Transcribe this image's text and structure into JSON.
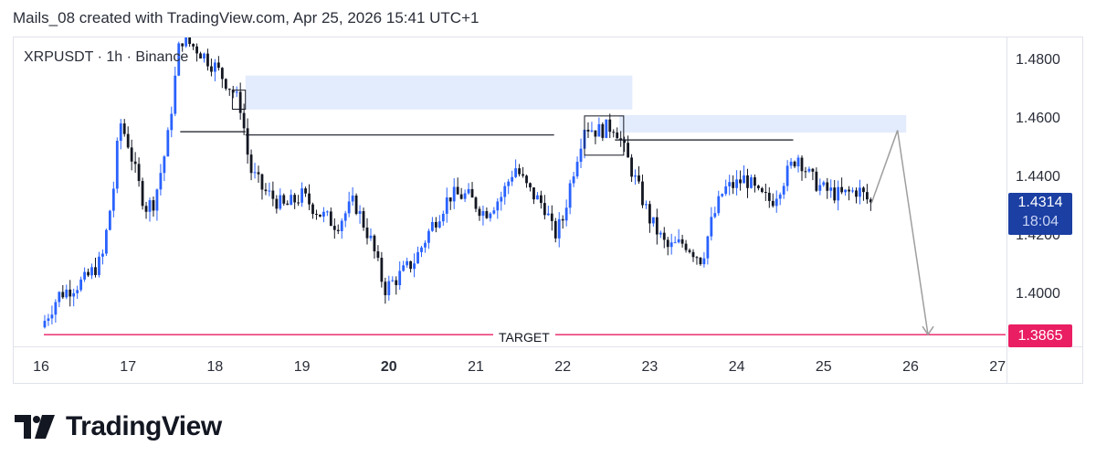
{
  "header": {
    "text": "Mails_08 created with TradingView.com, Apr 25, 2026 15:41 UTC+1"
  },
  "symbol": {
    "text": "XRPUSDT · 1h · Binance"
  },
  "price_axis": {
    "ticks": [
      "1.4800",
      "1.4600",
      "1.4400",
      "1.4200",
      "1.4000"
    ]
  },
  "time_axis": {
    "ticks": [
      "16",
      "17",
      "18",
      "19",
      "20",
      "21",
      "22",
      "23",
      "24",
      "25",
      "26",
      "27"
    ]
  },
  "current_price": {
    "price": "1.4314",
    "countdown": "18:04",
    "color": "#1b3fa3"
  },
  "target": {
    "label": "TARGET",
    "price": "1.3865",
    "color": "#e91e63"
  },
  "brand": {
    "name": "TradingView"
  },
  "colors": {
    "bull": "#2962ff",
    "bear": "#131722",
    "zone": "#e3ecfd",
    "arrow": "#9e9e9e"
  },
  "chart_data": {
    "type": "candlestick",
    "symbol": "XRPUSDT",
    "interval": "1h",
    "exchange": "Binance",
    "x_axis_days": [
      16,
      17,
      18,
      19,
      20,
      21,
      22,
      23,
      24,
      25,
      26,
      27
    ],
    "ylim": [
      1.3825,
      1.488
    ],
    "close_path": [
      {
        "day": 16.0,
        "price": 1.389
      },
      {
        "day": 16.2,
        "price": 1.4
      },
      {
        "day": 16.5,
        "price": 1.405
      },
      {
        "day": 16.7,
        "price": 1.412
      },
      {
        "day": 16.85,
        "price": 1.44
      },
      {
        "day": 16.9,
        "price": 1.46
      },
      {
        "day": 17.0,
        "price": 1.452
      },
      {
        "day": 17.1,
        "price": 1.44
      },
      {
        "day": 17.2,
        "price": 1.43
      },
      {
        "day": 17.3,
        "price": 1.432
      },
      {
        "day": 17.45,
        "price": 1.452
      },
      {
        "day": 17.6,
        "price": 1.488
      },
      {
        "day": 17.8,
        "price": 1.484
      },
      {
        "day": 18.0,
        "price": 1.478
      },
      {
        "day": 18.2,
        "price": 1.47
      },
      {
        "day": 18.3,
        "price": 1.464
      },
      {
        "day": 18.4,
        "price": 1.443
      },
      {
        "day": 18.55,
        "price": 1.436
      },
      {
        "day": 18.8,
        "price": 1.43
      },
      {
        "day": 19.0,
        "price": 1.434
      },
      {
        "day": 19.2,
        "price": 1.428
      },
      {
        "day": 19.4,
        "price": 1.424
      },
      {
        "day": 19.6,
        "price": 1.432
      },
      {
        "day": 19.8,
        "price": 1.418
      },
      {
        "day": 19.95,
        "price": 1.402
      },
      {
        "day": 20.1,
        "price": 1.406
      },
      {
        "day": 20.3,
        "price": 1.412
      },
      {
        "day": 20.5,
        "price": 1.424
      },
      {
        "day": 20.7,
        "price": 1.434
      },
      {
        "day": 20.9,
        "price": 1.434
      },
      {
        "day": 21.1,
        "price": 1.428
      },
      {
        "day": 21.3,
        "price": 1.434
      },
      {
        "day": 21.45,
        "price": 1.444
      },
      {
        "day": 21.6,
        "price": 1.436
      },
      {
        "day": 21.8,
        "price": 1.43
      },
      {
        "day": 21.9,
        "price": 1.42
      },
      {
        "day": 22.0,
        "price": 1.426
      },
      {
        "day": 22.1,
        "price": 1.44
      },
      {
        "day": 22.25,
        "price": 1.458
      },
      {
        "day": 22.4,
        "price": 1.456
      },
      {
        "day": 22.6,
        "price": 1.458
      },
      {
        "day": 22.7,
        "price": 1.45
      },
      {
        "day": 22.85,
        "price": 1.438
      },
      {
        "day": 23.0,
        "price": 1.426
      },
      {
        "day": 23.2,
        "price": 1.416
      },
      {
        "day": 23.4,
        "price": 1.418
      },
      {
        "day": 23.6,
        "price": 1.412
      },
      {
        "day": 23.7,
        "price": 1.424
      },
      {
        "day": 23.85,
        "price": 1.436
      },
      {
        "day": 24.0,
        "price": 1.438
      },
      {
        "day": 24.1,
        "price": 1.44
      },
      {
        "day": 24.25,
        "price": 1.434
      },
      {
        "day": 24.4,
        "price": 1.432
      },
      {
        "day": 24.55,
        "price": 1.44
      },
      {
        "day": 24.7,
        "price": 1.448
      },
      {
        "day": 24.85,
        "price": 1.44
      },
      {
        "day": 25.0,
        "price": 1.436
      },
      {
        "day": 25.2,
        "price": 1.434
      },
      {
        "day": 25.4,
        "price": 1.436
      },
      {
        "day": 25.55,
        "price": 1.431
      }
    ],
    "supply_zones": [
      {
        "day_from": 18.35,
        "day_to": 22.8,
        "price_low": 1.4634,
        "price_high": 1.475
      },
      {
        "day_from": 22.65,
        "day_to": 25.95,
        "price_low": 1.4555,
        "price_high": 1.4615
      }
    ],
    "horizontal_levels": [
      {
        "day_from": 17.6,
        "day_to": 18.35,
        "price": 1.4558
      },
      {
        "day_from": 18.35,
        "day_to": 21.9,
        "price": 1.4547
      },
      {
        "day_from": 22.6,
        "day_to": 24.65,
        "price": 1.453
      }
    ],
    "boxes": [
      {
        "day_from": 18.2,
        "day_to": 18.35,
        "price_low": 1.4635,
        "price_high": 1.47
      },
      {
        "day_from": 22.25,
        "day_to": 22.7,
        "price_low": 1.4478,
        "price_high": 1.4612
      }
    ],
    "projection": [
      {
        "day": 25.55,
        "price": 1.4314
      },
      {
        "day": 25.85,
        "price": 1.4563
      },
      {
        "day": 26.2,
        "price": 1.3865
      }
    ],
    "target": {
      "label": "TARGET",
      "price": 1.3865
    },
    "last_price": 1.4314,
    "legend": "none",
    "grid": false
  }
}
